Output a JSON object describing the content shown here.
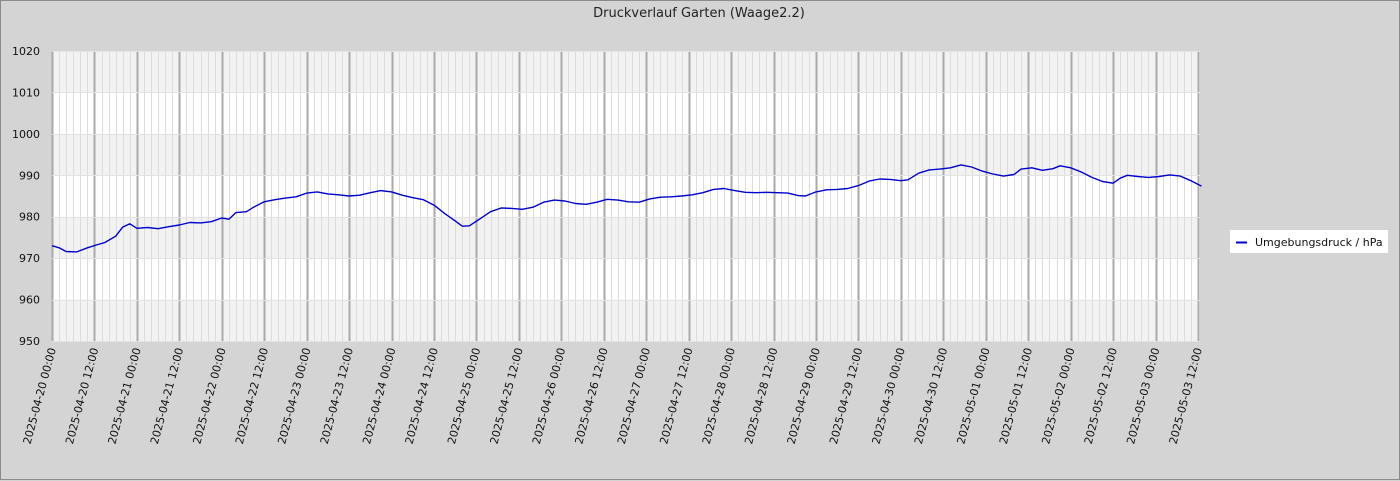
{
  "chart_data": {
    "type": "line",
    "title": "Druckverlauf Garten (Waage2.2)",
    "xlabel": "",
    "ylabel": "",
    "ylim": [
      950,
      1020
    ],
    "y_ticks": [
      950,
      960,
      970,
      980,
      990,
      1000,
      1010,
      1020
    ],
    "xlim": [
      "2025-04-20 00:00",
      "2025-05-03 12:00"
    ],
    "x_tick_labels": [
      "2025-04-20 00:00",
      "2025-04-20 12:00",
      "2025-04-21 00:00",
      "2025-04-21 12:00",
      "2025-04-22 00:00",
      "2025-04-22 12:00",
      "2025-04-23 00:00",
      "2025-04-23 12:00",
      "2025-04-24 00:00",
      "2025-04-24 12:00",
      "2025-04-25 00:00",
      "2025-04-25 12:00",
      "2025-04-26 00:00",
      "2025-04-26 12:00",
      "2025-04-27 00:00",
      "2025-04-27 12:00",
      "2025-04-28 00:00",
      "2025-04-28 12:00",
      "2025-04-29 00:00",
      "2025-04-29 12:00",
      "2025-04-30 00:00",
      "2025-04-30 12:00",
      "2025-05-01 00:00",
      "2025-05-01 12:00",
      "2025-05-02 00:00",
      "2025-05-02 12:00",
      "2025-05-03 00:00",
      "2025-05-03 12:00"
    ],
    "grid": true,
    "legend_position": "right",
    "series": [
      {
        "name": "Umgebungsdruck / hPa",
        "color": "#0000cc",
        "points": [
          [
            "2025-04-20 00:00",
            973.0
          ],
          [
            "2025-04-20 02:00",
            972.5
          ],
          [
            "2025-04-20 04:00",
            971.6
          ],
          [
            "2025-04-20 07:00",
            971.5
          ],
          [
            "2025-04-20 10:00",
            972.5
          ],
          [
            "2025-04-20 13:00",
            973.3
          ],
          [
            "2025-04-20 15:00",
            973.8
          ],
          [
            "2025-04-20 18:00",
            975.3
          ],
          [
            "2025-04-20 20:00",
            977.5
          ],
          [
            "2025-04-20 22:00",
            978.3
          ],
          [
            "2025-04-21 00:00",
            977.2
          ],
          [
            "2025-04-21 03:00",
            977.4
          ],
          [
            "2025-04-21 06:00",
            977.1
          ],
          [
            "2025-04-21 09:00",
            977.6
          ],
          [
            "2025-04-21 12:00",
            978.0
          ],
          [
            "2025-04-21 15:00",
            978.6
          ],
          [
            "2025-04-21 18:00",
            978.5
          ],
          [
            "2025-04-21 21:00",
            978.8
          ],
          [
            "2025-04-22 00:00",
            979.7
          ],
          [
            "2025-04-22 02:00",
            979.4
          ],
          [
            "2025-04-22 04:00",
            981.0
          ],
          [
            "2025-04-22 07:00",
            981.2
          ],
          [
            "2025-04-22 09:00",
            982.3
          ],
          [
            "2025-04-22 12:00",
            983.6
          ],
          [
            "2025-04-22 15:00",
            984.1
          ],
          [
            "2025-04-22 18:00",
            984.5
          ],
          [
            "2025-04-22 21:00",
            984.8
          ],
          [
            "2025-04-23 00:00",
            985.7
          ],
          [
            "2025-04-23 03:00",
            986.0
          ],
          [
            "2025-04-23 06:00",
            985.5
          ],
          [
            "2025-04-23 09:00",
            985.3
          ],
          [
            "2025-04-23 12:00",
            985.0
          ],
          [
            "2025-04-23 15:00",
            985.2
          ],
          [
            "2025-04-23 18:00",
            985.8
          ],
          [
            "2025-04-23 21:00",
            986.3
          ],
          [
            "2025-04-24 00:00",
            986.0
          ],
          [
            "2025-04-24 03:00",
            985.2
          ],
          [
            "2025-04-24 06:00",
            984.6
          ],
          [
            "2025-04-24 09:00",
            984.1
          ],
          [
            "2025-04-24 12:00",
            982.8
          ],
          [
            "2025-04-24 15:00",
            980.8
          ],
          [
            "2025-04-24 18:00",
            979.0
          ],
          [
            "2025-04-24 20:00",
            977.7
          ],
          [
            "2025-04-24 22:00",
            977.8
          ],
          [
            "2025-04-25 01:00",
            979.5
          ],
          [
            "2025-04-25 04:00",
            981.2
          ],
          [
            "2025-04-25 07:00",
            982.1
          ],
          [
            "2025-04-25 10:00",
            982.0
          ],
          [
            "2025-04-25 13:00",
            981.8
          ],
          [
            "2025-04-25 16:00",
            982.3
          ],
          [
            "2025-04-25 19:00",
            983.5
          ],
          [
            "2025-04-25 22:00",
            984.0
          ],
          [
            "2025-04-26 01:00",
            983.8
          ],
          [
            "2025-04-26 04:00",
            983.2
          ],
          [
            "2025-04-26 07:00",
            983.0
          ],
          [
            "2025-04-26 10:00",
            983.5
          ],
          [
            "2025-04-26 13:00",
            984.2
          ],
          [
            "2025-04-26 16:00",
            984.0
          ],
          [
            "2025-04-26 19:00",
            983.6
          ],
          [
            "2025-04-26 22:00",
            983.5
          ],
          [
            "2025-04-27 01:00",
            984.3
          ],
          [
            "2025-04-27 04:00",
            984.7
          ],
          [
            "2025-04-27 07:00",
            984.8
          ],
          [
            "2025-04-27 10:00",
            985.0
          ],
          [
            "2025-04-27 13:00",
            985.3
          ],
          [
            "2025-04-27 16:00",
            985.8
          ],
          [
            "2025-04-27 19:00",
            986.6
          ],
          [
            "2025-04-27 22:00",
            986.8
          ],
          [
            "2025-04-28 01:00",
            986.3
          ],
          [
            "2025-04-28 04:00",
            985.9
          ],
          [
            "2025-04-28 07:00",
            985.8
          ],
          [
            "2025-04-28 10:00",
            985.9
          ],
          [
            "2025-04-28 13:00",
            985.8
          ],
          [
            "2025-04-28 16:00",
            985.7
          ],
          [
            "2025-04-28 19:00",
            985.1
          ],
          [
            "2025-04-28 21:00",
            985.0
          ],
          [
            "2025-04-29 00:00",
            986.0
          ],
          [
            "2025-04-29 03:00",
            986.5
          ],
          [
            "2025-04-29 06:00",
            986.6
          ],
          [
            "2025-04-29 09:00",
            986.8
          ],
          [
            "2025-04-29 12:00",
            987.5
          ],
          [
            "2025-04-29 15:00",
            988.6
          ],
          [
            "2025-04-29 18:00",
            989.1
          ],
          [
            "2025-04-29 21:00",
            989.0
          ],
          [
            "2025-04-30 00:00",
            988.7
          ],
          [
            "2025-04-30 02:00",
            988.9
          ],
          [
            "2025-04-30 05:00",
            990.5
          ],
          [
            "2025-04-30 08:00",
            991.3
          ],
          [
            "2025-04-30 11:00",
            991.5
          ],
          [
            "2025-04-30 14:00",
            991.8
          ],
          [
            "2025-04-30 17:00",
            992.5
          ],
          [
            "2025-04-30 20:00",
            992.0
          ],
          [
            "2025-04-30 23:00",
            991.0
          ],
          [
            "2025-05-01 02:00",
            990.3
          ],
          [
            "2025-05-01 05:00",
            989.8
          ],
          [
            "2025-05-01 08:00",
            990.2
          ],
          [
            "2025-05-01 10:00",
            991.5
          ],
          [
            "2025-05-01 13:00",
            991.8
          ],
          [
            "2025-05-01 16:00",
            991.2
          ],
          [
            "2025-05-01 19:00",
            991.6
          ],
          [
            "2025-05-01 21:00",
            992.3
          ],
          [
            "2025-05-02 00:00",
            991.8
          ],
          [
            "2025-05-02 03:00",
            990.8
          ],
          [
            "2025-05-02 06:00",
            989.5
          ],
          [
            "2025-05-02 09:00",
            988.5
          ],
          [
            "2025-05-02 12:00",
            988.1
          ],
          [
            "2025-05-02 14:00",
            989.3
          ],
          [
            "2025-05-02 16:00",
            990.0
          ],
          [
            "2025-05-02 19:00",
            989.7
          ],
          [
            "2025-05-02 22:00",
            989.5
          ],
          [
            "2025-05-03 01:00",
            989.7
          ],
          [
            "2025-05-03 04:00",
            990.1
          ],
          [
            "2025-05-03 07:00",
            989.8
          ],
          [
            "2025-05-03 10:00",
            988.7
          ],
          [
            "2025-05-03 13:00",
            987.4
          ]
        ]
      }
    ]
  }
}
